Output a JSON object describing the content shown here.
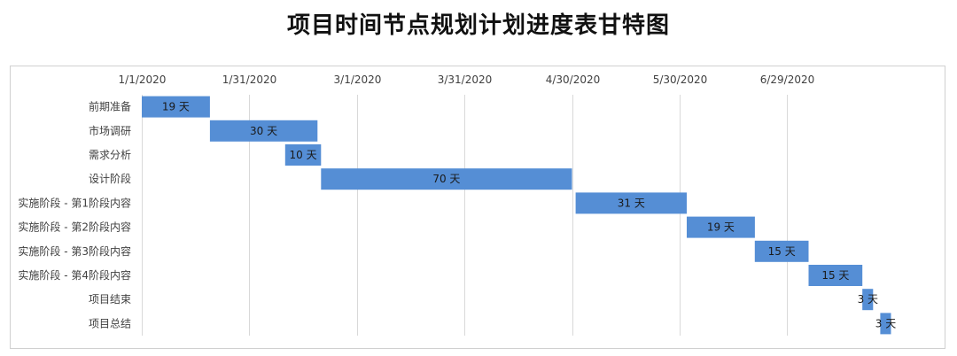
{
  "title": "项目时间节点规划计划进度表甘特图",
  "chart_data": {
    "type": "bar",
    "orientation": "horizontal-gantt",
    "title": "项目时间节点规划计划进度表甘特图",
    "xlabel": "",
    "ylabel": "",
    "x_axis_position": "top",
    "grid": "vertical",
    "x_ticks": [
      "1/1/2020",
      "1/31/2020",
      "3/1/2020",
      "3/31/2020",
      "4/30/2020",
      "5/30/2020",
      "6/29/2020"
    ],
    "xlim": [
      "1/1/2020",
      "8/6/2020"
    ],
    "tasks": [
      {
        "name": "前期准备",
        "start": "1/1/2020",
        "duration_days": 19,
        "label": "19 天"
      },
      {
        "name": "市场调研",
        "start": "1/20/2020",
        "duration_days": 30,
        "label": "30 天"
      },
      {
        "name": "需求分析",
        "start": "2/10/2020",
        "duration_days": 10,
        "label": "10 天"
      },
      {
        "name": "设计阶段",
        "start": "2/20/2020",
        "duration_days": 70,
        "label": "70 天"
      },
      {
        "name": "实施阶段 - 第1阶段内容",
        "start": "5/1/2020",
        "duration_days": 31,
        "label": "31 天"
      },
      {
        "name": "实施阶段 - 第2阶段内容",
        "start": "6/1/2020",
        "duration_days": 19,
        "label": "19 天"
      },
      {
        "name": "实施阶段 - 第3阶段内容",
        "start": "6/20/2020",
        "duration_days": 15,
        "label": "15 天"
      },
      {
        "name": "实施阶段 - 第4阶段内容",
        "start": "7/5/2020",
        "duration_days": 15,
        "label": "15 天"
      },
      {
        "name": "项目结束",
        "start": "7/20/2020",
        "duration_days": 3,
        "label": "3 天"
      },
      {
        "name": "项目总结",
        "start": "7/25/2020",
        "duration_days": 3,
        "label": "3 天"
      }
    ],
    "colors": {
      "bar": "#558ed5",
      "grid": "#d9d9d9",
      "frame": "#d0d0d0",
      "text": "#404040"
    }
  }
}
